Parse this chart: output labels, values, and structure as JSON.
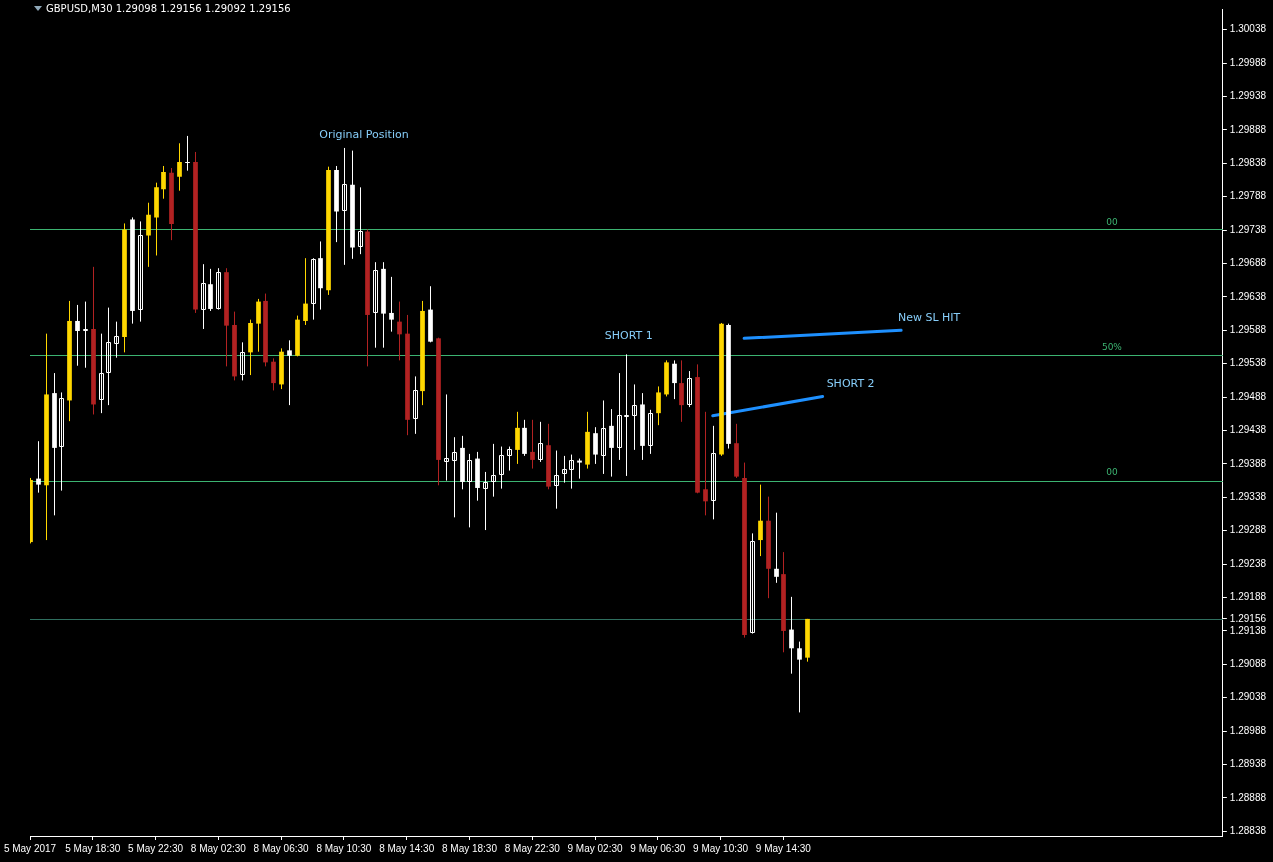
{
  "chart_data": {
    "type": "candlestick",
    "title": "GBPUSD,M30 1.29098 1.29156 1.29092 1.29156",
    "categories": [
      "5 May 2017",
      null,
      null,
      null,
      null,
      null,
      null,
      null,
      "5 May 18:30",
      null,
      null,
      null,
      null,
      null,
      null,
      null,
      "5 May 22:30",
      null,
      null,
      null,
      null,
      null,
      null,
      null,
      "8 May 02:30",
      null,
      null,
      null,
      null,
      null,
      null,
      null,
      "8 May 06:30",
      null,
      null,
      null,
      null,
      null,
      null,
      null,
      "8 May 10:30",
      null,
      null,
      null,
      null,
      null,
      null,
      null,
      "8 May 14:30",
      null,
      null,
      null,
      null,
      null,
      null,
      null,
      "8 May 18:30",
      null,
      null,
      null,
      null,
      null,
      null,
      null,
      "8 May 22:30",
      null,
      null,
      null,
      null,
      null,
      null,
      null,
      "9 May 02:30",
      null,
      null,
      null,
      null,
      null,
      null,
      null,
      "9 May 06:30",
      null,
      null,
      null,
      null,
      null,
      null,
      null,
      "9 May 10:30",
      null,
      null,
      null,
      null,
      null,
      null,
      null,
      "9 May 14:30",
      null,
      null,
      null,
      null,
      null,
      null,
      null,
      null,
      null,
      null,
      null,
      null,
      null,
      null,
      null,
      null,
      null,
      null,
      null,
      null,
      null,
      null,
      null,
      null,
      null,
      null,
      null,
      null,
      null,
      null,
      null,
      null,
      null,
      null,
      null,
      null,
      null,
      null,
      null,
      null,
      null,
      null,
      null,
      null,
      null,
      null,
      null,
      null,
      null,
      null,
      null,
      null,
      null,
      null,
      null,
      null
    ],
    "ohlc": [
      [
        1.29271,
        1.29367,
        1.29269,
        1.29364
      ],
      [
        1.29366,
        1.29422,
        1.29345,
        1.29357
      ],
      [
        1.29356,
        1.29583,
        1.29274,
        1.29492
      ],
      [
        1.29494,
        1.29524,
        1.29311,
        1.29412
      ],
      [
        1.29412,
        1.29495,
        1.29348,
        1.29486
      ],
      [
        1.29483,
        1.29632,
        1.29452,
        1.29602
      ],
      [
        1.29602,
        1.29626,
        1.29535,
        1.29587
      ],
      [
        1.29587,
        1.29631,
        1.29532,
        1.2959
      ],
      [
        1.2959,
        1.29683,
        1.29462,
        1.29477
      ],
      [
        1.29483,
        1.29583,
        1.29464,
        1.29524
      ],
      [
        1.29524,
        1.29622,
        1.29476,
        1.2957
      ],
      [
        1.29568,
        1.29601,
        1.29547,
        1.2958
      ],
      [
        1.29578,
        1.29748,
        1.29555,
        1.29739
      ],
      [
        1.29754,
        1.29757,
        1.29598,
        1.29617
      ],
      [
        1.29617,
        1.29751,
        1.29601,
        1.2973
      ],
      [
        1.2973,
        1.29779,
        1.29683,
        1.29761
      ],
      [
        1.29757,
        1.29809,
        1.297,
        1.29802
      ],
      [
        1.29799,
        1.29834,
        1.29785,
        1.29825
      ],
      [
        1.29824,
        1.29831,
        1.29723,
        1.29747
      ],
      [
        1.29818,
        1.29868,
        1.29797,
        1.2984
      ],
      [
        1.2984,
        1.29879,
        1.29827,
        1.29839
      ],
      [
        1.2984,
        1.29855,
        1.29614,
        1.29619
      ],
      [
        1.29619,
        1.29687,
        1.2959,
        1.29659
      ],
      [
        1.29657,
        1.2968,
        1.29617,
        1.2962
      ],
      [
        1.2962,
        1.29681,
        1.29619,
        1.29675
      ],
      [
        1.29675,
        1.29681,
        1.29534,
        1.29595
      ],
      [
        1.29596,
        1.29616,
        1.29513,
        1.29519
      ],
      [
        1.29521,
        1.2957,
        1.29513,
        1.29556
      ],
      [
        1.29555,
        1.29604,
        1.29521,
        1.29599
      ],
      [
        1.29598,
        1.29635,
        1.29556,
        1.29631
      ],
      [
        1.29632,
        1.29643,
        1.29534,
        1.2954
      ],
      [
        1.29541,
        1.29546,
        1.29498,
        1.29509
      ],
      [
        1.29507,
        1.29561,
        1.295,
        1.29556
      ],
      [
        1.29558,
        1.29573,
        1.29476,
        1.2955
      ],
      [
        1.2955,
        1.2961,
        1.29549,
        1.29604
      ],
      [
        1.29602,
        1.29696,
        1.29596,
        1.29628
      ],
      [
        1.29628,
        1.29696,
        1.29604,
        1.29695
      ],
      [
        1.29696,
        1.29721,
        1.29619,
        1.29651
      ],
      [
        1.29648,
        1.29833,
        1.29641,
        1.29828
      ],
      [
        1.29828,
        1.29834,
        1.2972,
        1.29766
      ],
      [
        1.29766,
        1.29861,
        1.29686,
        1.29807
      ],
      [
        1.29806,
        1.29857,
        1.29695,
        1.29712
      ],
      [
        1.29712,
        1.29802,
        1.29702,
        1.29736
      ],
      [
        1.29736,
        1.29739,
        1.29534,
        1.29611
      ],
      [
        1.29613,
        1.2969,
        1.29562,
        1.29678
      ],
      [
        1.2968,
        1.2969,
        1.29562,
        1.29613
      ],
      [
        1.29614,
        1.29668,
        1.29586,
        1.29604
      ],
      [
        1.29601,
        1.29631,
        1.29543,
        1.29582
      ],
      [
        1.29583,
        1.29611,
        1.29431,
        1.29454
      ],
      [
        1.29455,
        1.29519,
        1.29433,
        1.29498
      ],
      [
        1.29497,
        1.29632,
        1.29476,
        1.29617
      ],
      [
        1.29619,
        1.29654,
        1.2957,
        1.29571
      ],
      [
        1.29576,
        1.29577,
        1.29356,
        1.29394
      ],
      [
        1.29391,
        1.29492,
        1.29363,
        1.29397
      ],
      [
        1.29393,
        1.29428,
        1.29308,
        1.29406
      ],
      [
        1.29412,
        1.2943,
        1.2935,
        1.29361
      ],
      [
        1.29361,
        1.29403,
        1.29293,
        1.29394
      ],
      [
        1.29396,
        1.29406,
        1.29333,
        1.29352
      ],
      [
        1.2935,
        1.29376,
        1.29289,
        1.29361
      ],
      [
        1.29361,
        1.29418,
        1.29339,
        1.29372
      ],
      [
        1.29372,
        1.29414,
        1.29351,
        1.29402
      ],
      [
        1.294,
        1.29414,
        1.29378,
        1.29411
      ],
      [
        1.29409,
        1.29466,
        1.29388,
        1.29442
      ],
      [
        1.29442,
        1.29454,
        1.294,
        1.29403
      ],
      [
        1.29406,
        1.29454,
        1.29381,
        1.29394
      ],
      [
        1.29394,
        1.29451,
        1.29391,
        1.29419
      ],
      [
        1.29416,
        1.29448,
        1.2935,
        1.29354
      ],
      [
        1.29356,
        1.29408,
        1.29321,
        1.29372
      ],
      [
        1.29373,
        1.294,
        1.2936,
        1.29381
      ],
      [
        1.29379,
        1.29402,
        1.29351,
        1.29394
      ],
      [
        1.29393,
        1.29396,
        1.29366,
        1.2939
      ],
      [
        1.29387,
        1.29466,
        1.29381,
        1.29436
      ],
      [
        1.29434,
        1.29443,
        1.29388,
        1.29402
      ],
      [
        1.294,
        1.29483,
        1.29373,
        1.29442
      ],
      [
        1.29445,
        1.2947,
        1.29369,
        1.29412
      ],
      [
        1.29412,
        1.29524,
        1.29394,
        1.29461
      ],
      [
        1.2946,
        1.29552,
        1.2937,
        1.29461
      ],
      [
        1.2946,
        1.29507,
        1.29409,
        1.29476
      ],
      [
        1.29477,
        1.29494,
        1.29394,
        1.29415
      ],
      [
        1.29414,
        1.29469,
        1.29403,
        1.29464
      ],
      [
        1.29464,
        1.29504,
        1.29446,
        1.29495
      ],
      [
        1.29492,
        1.29543,
        1.29489,
        1.2954
      ],
      [
        1.29538,
        1.29543,
        1.29485,
        1.29509
      ],
      [
        1.29509,
        1.29543,
        1.29451,
        1.29476
      ],
      [
        1.29476,
        1.29527,
        1.29473,
        1.29516
      ],
      [
        1.29518,
        1.29537,
        1.29344,
        1.29345
      ],
      [
        1.2935,
        1.29466,
        1.29311,
        1.29332
      ],
      [
        1.29333,
        1.29445,
        1.29305,
        1.29405
      ],
      [
        1.29402,
        1.29599,
        1.294,
        1.29598
      ],
      [
        1.29596,
        1.29598,
        1.29411,
        1.29418
      ],
      [
        1.29419,
        1.29448,
        1.29367,
        1.29369
      ],
      [
        1.29367,
        1.2939,
        1.29128,
        1.29132
      ],
      [
        1.29135,
        1.29284,
        1.29134,
        1.29272
      ],
      [
        1.29274,
        1.29357,
        1.2925,
        1.29303
      ],
      [
        1.29303,
        1.29339,
        1.29187,
        1.29231
      ],
      [
        1.29231,
        1.29315,
        1.2921,
        1.29219
      ],
      [
        1.29223,
        1.29256,
        1.29106,
        1.29138
      ],
      [
        1.2914,
        1.29189,
        1.29074,
        1.29112
      ],
      [
        1.29112,
        1.29122,
        1.29016,
        1.29095
      ],
      [
        1.29098,
        1.29156,
        1.29092,
        1.29156
      ],
      null,
      null,
      null,
      null,
      null,
      null,
      null,
      null,
      null,
      null,
      null,
      null,
      null,
      null,
      null,
      null,
      null,
      null,
      null,
      null,
      null,
      null,
      null,
      null,
      null,
      null,
      null,
      null,
      null,
      null,
      null,
      null,
      null,
      null,
      null,
      null,
      null,
      null,
      null,
      null,
      null,
      null,
      null,
      null,
      null,
      null,
      null,
      null,
      null,
      null,
      null,
      null,
      null
    ],
    "colors": [
      "#ffd700",
      "#ffffff",
      "#ffd700",
      "#ffffff",
      "#ffffff",
      "#ffd700",
      "#ffffff",
      "#ffffff",
      "#b22222",
      "#ffffff",
      "#ffffff",
      "#ffffff",
      "#ffd700",
      "#ffffff",
      "#ffffff",
      "#ffd700",
      "#ffd700",
      "#ffd700",
      "#b22222",
      "#ffd700",
      "#ffffff",
      "#b22222",
      "#ffffff",
      "#ffffff",
      "#ffffff",
      "#b22222",
      "#b22222",
      "#ffffff",
      "#ffd700",
      "#ffd700",
      "#b22222",
      "#b22222",
      "#ffd700",
      "#ffffff",
      "#ffd700",
      "#ffd700",
      "#ffffff",
      "#ffffff",
      "#ffd700",
      "#ffffff",
      "#ffffff",
      "#ffffff",
      "#ffffff",
      "#b22222",
      "#ffffff",
      "#ffffff",
      "#ffffff",
      "#b22222",
      "#b22222",
      "#ffffff",
      "#ffd700",
      "#ffffff",
      "#b22222",
      "#ffffff",
      "#ffffff",
      "#ffffff",
      "#ffffff",
      "#ffffff",
      "#ffffff",
      "#ffffff",
      "#ffffff",
      "#ffffff",
      "#ffd700",
      "#ffffff",
      "#b22222",
      "#ffffff",
      "#b22222",
      "#ffffff",
      "#ffffff",
      "#ffffff",
      "#ffffff",
      "#ffd700",
      "#ffffff",
      "#ffffff",
      "#ffffff",
      "#ffffff",
      "#ffffff",
      "#ffffff",
      "#ffffff",
      "#ffffff",
      "#ffd700",
      "#ffd700",
      "#ffffff",
      "#b22222",
      "#ffffff",
      "#b22222",
      "#b22222",
      "#ffffff",
      "#ffd700",
      "#ffffff",
      "#b22222",
      "#b22222",
      "#ffffff",
      "#ffd700",
      "#b22222",
      "#ffffff",
      "#b22222",
      "#ffffff",
      "#ffffff",
      "#ffd700",
      null,
      null,
      null,
      null,
      null,
      null,
      null,
      null,
      null,
      null,
      null,
      null,
      null,
      null,
      null,
      null,
      null,
      null,
      null,
      null,
      null,
      null,
      null,
      null,
      null,
      null,
      null,
      null,
      null,
      null,
      null,
      null,
      null,
      null,
      null,
      null,
      null,
      null,
      null,
      null,
      null,
      null,
      null,
      null,
      null,
      null,
      null,
      null,
      null,
      null,
      null,
      null,
      null
    ],
    "ylim": [
      1.28831,
      1.30069
    ],
    "yticks": [
      1.30038,
      1.29988,
      1.29938,
      1.29888,
      1.29838,
      1.29788,
      1.29738,
      1.29688,
      1.29638,
      1.29588,
      1.29538,
      1.29488,
      1.29438,
      1.29388,
      1.29338,
      1.29288,
      1.29238,
      1.29188,
      1.29156,
      1.29138,
      1.29088,
      1.29038,
      1.28988,
      1.28938,
      1.28888,
      1.28838
    ],
    "series": [
      {
        "type": "line",
        "name": "SHORT 2",
        "color": "#1e90ff",
        "values": [
          null,
          null,
          null,
          null,
          null,
          null,
          null,
          null,
          null,
          null,
          null,
          null,
          null,
          null,
          null,
          null,
          null,
          null,
          null,
          null,
          null,
          null,
          null,
          null,
          null,
          null,
          null,
          null,
          null,
          null,
          null,
          null,
          null,
          null,
          null,
          null,
          null,
          null,
          null,
          null,
          null,
          null,
          null,
          null,
          null,
          null,
          null,
          null,
          null,
          null,
          null,
          null,
          null,
          null,
          null,
          null,
          null,
          null,
          null,
          null,
          null,
          null,
          null,
          null,
          null,
          null,
          null,
          null,
          null,
          null,
          null,
          null,
          null,
          null,
          null,
          null,
          null,
          null,
          null,
          null,
          null,
          null,
          null,
          null,
          null,
          null,
          null,
          1.2946,
          null,
          null,
          null,
          null,
          null,
          null,
          null,
          null,
          null,
          null,
          null,
          null,
          null,
          1.29489,
          null,
          null,
          null,
          null,
          null,
          null,
          null,
          null,
          null,
          null,
          null,
          null,
          null,
          null,
          null,
          null,
          null,
          null,
          null,
          null,
          null,
          null,
          null,
          null,
          null,
          null,
          null,
          null,
          null,
          null,
          null,
          null,
          null,
          null,
          null,
          null,
          null,
          null,
          null,
          null,
          null,
          null,
          null,
          null,
          null,
          null,
          null,
          null,
          null,
          null,
          null
        ]
      },
      {
        "type": "line",
        "name": "New SL HIT",
        "color": "#1e90ff",
        "values": [
          null,
          null,
          null,
          null,
          null,
          null,
          null,
          null,
          null,
          null,
          null,
          null,
          null,
          null,
          null,
          null,
          null,
          null,
          null,
          null,
          null,
          null,
          null,
          null,
          null,
          null,
          null,
          null,
          null,
          null,
          null,
          null,
          null,
          null,
          null,
          null,
          null,
          null,
          null,
          null,
          null,
          null,
          null,
          null,
          null,
          null,
          null,
          null,
          null,
          null,
          null,
          null,
          null,
          null,
          null,
          null,
          null,
          null,
          null,
          null,
          null,
          null,
          null,
          null,
          null,
          null,
          null,
          null,
          null,
          null,
          null,
          null,
          null,
          null,
          null,
          null,
          null,
          null,
          null,
          null,
          null,
          null,
          null,
          null,
          null,
          null,
          null,
          null,
          null,
          null,
          null,
          1.29576,
          null,
          null,
          null,
          null,
          null,
          null,
          null,
          null,
          null,
          null,
          null,
          null,
          null,
          null,
          null,
          null,
          null,
          null,
          null,
          1.29588,
          null,
          null,
          null,
          null,
          null,
          null,
          null,
          null,
          null,
          null,
          null,
          null,
          null,
          null,
          null,
          null,
          null,
          null,
          null,
          null,
          null,
          null,
          null,
          null,
          null,
          null,
          null,
          null,
          null,
          null,
          null,
          null,
          null,
          null,
          null,
          null,
          null,
          null,
          null,
          null,
          null
        ]
      }
    ],
    "ref_lines": [
      {
        "axis": "y",
        "value": 1.29739,
        "color": "#3cb371"
      },
      {
        "axis": "y",
        "value": 1.29551,
        "color": "#3cb371"
      },
      {
        "axis": "y",
        "value": 1.29363,
        "color": "#3cb371"
      },
      {
        "axis": "y",
        "value": 1.29156,
        "color": "#2f6f5f"
      }
    ],
    "annotations": [
      "Original Position",
      "SHORT 1",
      "00",
      "50%",
      "00"
    ]
  }
}
